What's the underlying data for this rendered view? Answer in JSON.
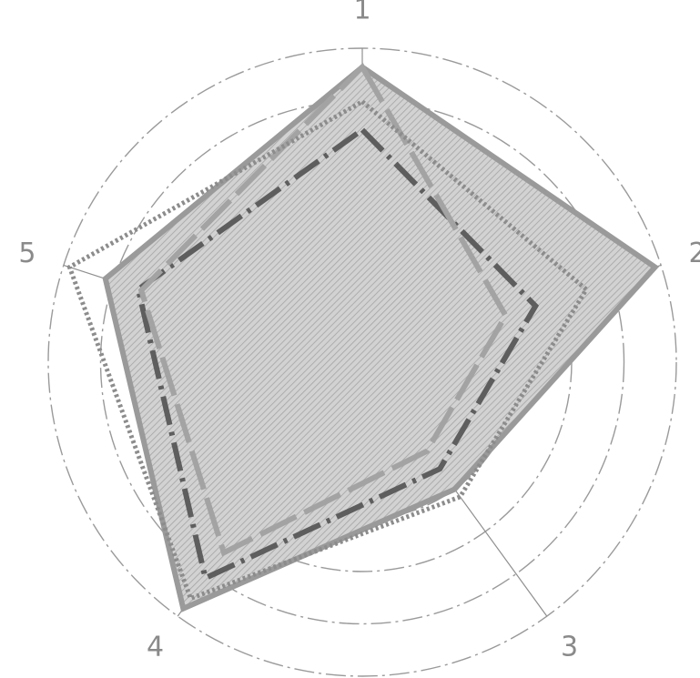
{
  "chart_data": {
    "type": "radar",
    "title": "",
    "axes": [
      "1",
      "2",
      "3",
      "4",
      "5"
    ],
    "rlim": [
      0,
      1
    ],
    "grid_rings": 6,
    "grid": true,
    "legend": "none",
    "series": [
      {
        "values": [
          0.94,
          0.98,
          0.5,
          0.97,
          0.86
        ],
        "color": "#9a9a9a"
      },
      {
        "values": [
          0.74,
          0.58,
          0.42,
          0.85,
          0.75
        ],
        "color": "#5e5e5e"
      },
      {
        "values": [
          0.94,
          0.48,
          0.35,
          0.75,
          0.74
        ],
        "color": "#a3a3a3"
      },
      {
        "values": [
          0.83,
          0.75,
          0.53,
          0.93,
          0.98
        ],
        "color": "#8c8c8c"
      }
    ]
  }
}
